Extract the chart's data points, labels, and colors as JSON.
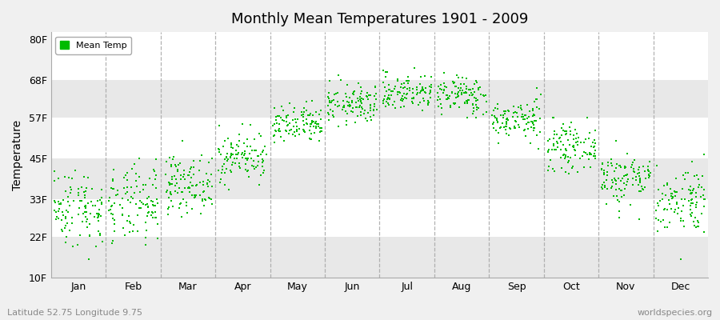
{
  "title": "Monthly Mean Temperatures 1901 - 2009",
  "ylabel": "Temperature",
  "yticks": [
    10,
    22,
    33,
    45,
    57,
    68,
    80
  ],
  "ytick_labels": [
    "10F",
    "22F",
    "33F",
    "45F",
    "57F",
    "68F",
    "80F"
  ],
  "ylim": [
    10,
    82
  ],
  "months": [
    "Jan",
    "Feb",
    "Mar",
    "Apr",
    "May",
    "Jun",
    "Jul",
    "Aug",
    "Sep",
    "Oct",
    "Nov",
    "Dec"
  ],
  "dot_color": "#00bb00",
  "bg_white": "#ffffff",
  "bg_gray": "#e8e8e8",
  "fig_bg": "#f0f0f0",
  "legend_label": "Mean Temp",
  "subtitle_left": "Latitude 52.75 Longitude 9.75",
  "subtitle_right": "worldspecies.org",
  "years": 109,
  "monthly_mean_c": [
    -0.8,
    -0.5,
    3.0,
    7.5,
    12.5,
    16.0,
    18.0,
    17.5,
    13.5,
    9.0,
    4.0,
    0.5
  ],
  "monthly_std_c": [
    3.2,
    3.2,
    2.3,
    2.0,
    1.6,
    1.6,
    1.5,
    1.6,
    1.6,
    1.8,
    2.2,
    2.8
  ],
  "seed": 42
}
